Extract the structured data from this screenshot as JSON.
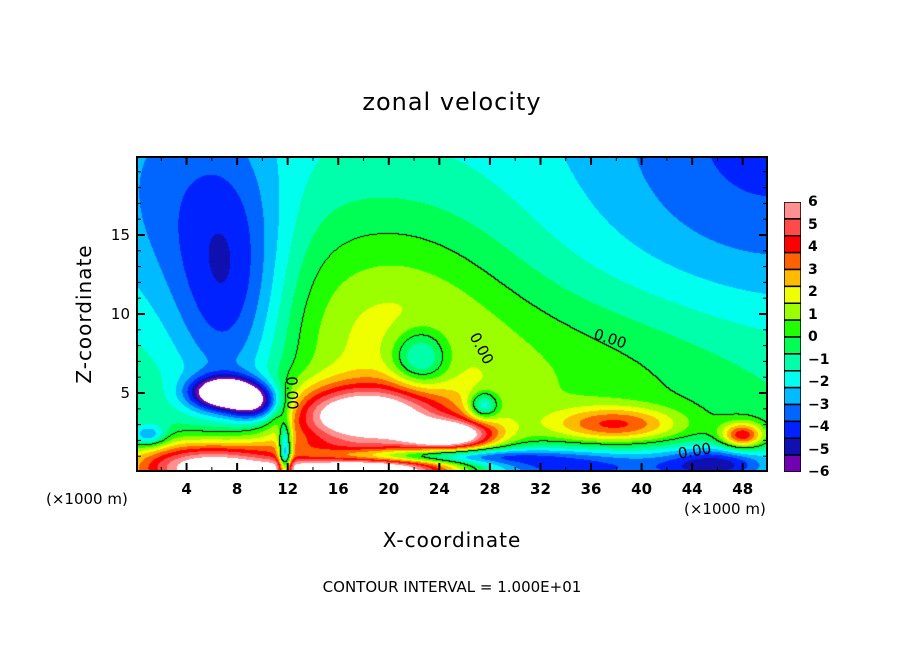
{
  "chart_data": {
    "type": "heatmap",
    "subtype": "filled-contour",
    "title": "zonal velocity",
    "xlabel": "X-coordinate",
    "ylabel": "Z-coordinate",
    "x_unit_label": "(×1000 m)",
    "footer": "CONTOUR INTERVAL = 1.000E+01",
    "xlim": [
      0,
      50
    ],
    "ylim": [
      0,
      20
    ],
    "x_ticks": [
      4,
      8,
      12,
      16,
      20,
      24,
      28,
      32,
      36,
      40,
      44,
      48
    ],
    "x_tick_labels": [
      "4",
      "8",
      "12",
      "16",
      "20",
      "24",
      "28",
      "32",
      "36",
      "40",
      "44",
      "48"
    ],
    "x_minor_step": 2,
    "y_ticks": [
      5,
      10,
      15
    ],
    "y_tick_labels": [
      "5",
      "10",
      "15"
    ],
    "y_minor_step": 1,
    "colorbar": {
      "min": -6,
      "max": 6,
      "levels": [
        -6,
        -5,
        -4,
        -3,
        -2,
        -1,
        0,
        1,
        2,
        3,
        4,
        5,
        6
      ],
      "labels": [
        "6",
        "5",
        "4",
        "3",
        "2",
        "1",
        "0",
        "−1",
        "−2",
        "−3",
        "−4",
        "−5",
        "−6"
      ],
      "colors_top_to_bottom": [
        "#ff9090",
        "#ff4a4a",
        "#ff0000",
        "#ff6000",
        "#ffbb00",
        "#f0ff00",
        "#9cff00",
        "#20ff00",
        "#00ff55",
        "#00ffaa",
        "#00ffee",
        "#00bbff",
        "#0066ff",
        "#0022ff",
        "#1010b0",
        "#7000b0"
      ]
    },
    "contour_labels": [
      {
        "text": "0.00",
        "x": 37.5,
        "z": 8.4,
        "rotation": 18
      },
      {
        "text": "0.00",
        "x": 27.3,
        "z": 7.8,
        "rotation": 62
      },
      {
        "text": "0.00",
        "x": 12.3,
        "z": 5.0,
        "rotation": 88
      },
      {
        "text": "0.00",
        "x": 44.2,
        "z": 1.3,
        "rotation": -10
      }
    ],
    "features": [
      {
        "note": "background",
        "x": 25,
        "z": 10,
        "value": -0.5,
        "sx": 100,
        "sz": 100
      },
      {
        "note": "upper-left negative lobe",
        "x": 7.5,
        "z": 11,
        "value": -3.2,
        "sx": 3.2,
        "sz": 6
      },
      {
        "note": "upper-right negative",
        "x": 50,
        "z": 20,
        "value": -2.2,
        "sx": 10,
        "sz": 8
      },
      {
        "note": "left upper negative",
        "x": 2,
        "z": 17,
        "value": -1.6,
        "sx": 5,
        "sz": 6
      },
      {
        "note": "mid positive",
        "x": 20,
        "z": 10,
        "value": 2.2,
        "sx": 7,
        "sz": 5
      },
      {
        "note": "positive broad",
        "x": 33,
        "z": 6,
        "value": 1.6,
        "sx": 14,
        "sz": 4
      },
      {
        "note": "jet positive",
        "x": 18,
        "z": 3.5,
        "value": 7.5,
        "sx": 4.5,
        "sz": 1.4
      },
      {
        "note": "jet tail",
        "x": 25,
        "z": 2.3,
        "value": 6.5,
        "sx": 2.5,
        "sz": 0.7
      },
      {
        "note": "neg white blob",
        "x": 7,
        "z": 5,
        "value": -7.5,
        "sx": 1.8,
        "sz": 0.7
      },
      {
        "note": "neg blob 2",
        "x": 9.5,
        "z": 4.3,
        "value": -5,
        "sx": 1.5,
        "sz": 0.8
      },
      {
        "note": "neg pocket right",
        "x": 22.5,
        "z": 7.2,
        "value": -3.5,
        "sx": 1.6,
        "sz": 1.3
      },
      {
        "note": "neg pocket 2",
        "x": 27.5,
        "z": 4.2,
        "value": -3.5,
        "sx": 0.8,
        "sz": 0.6
      },
      {
        "note": "surface pos left",
        "x": 6,
        "z": 0.3,
        "value": 8,
        "sx": 4.5,
        "sz": 1.2
      },
      {
        "note": "surface pos mid",
        "x": 19,
        "z": 0.1,
        "value": 9,
        "sx": 5.5,
        "sz": 0.9
      },
      {
        "note": "surface neg band",
        "x": 22,
        "z": 1.0,
        "value": -5,
        "sx": 6,
        "sz": 0.35
      },
      {
        "note": "surface neg right",
        "x": 33,
        "z": 0.3,
        "value": -4.2,
        "sx": 8,
        "sz": 0.9
      },
      {
        "note": "surface neg far right",
        "x": 46,
        "z": 0.5,
        "value": -3.5,
        "sx": 3,
        "sz": 0.8
      },
      {
        "note": "gap at x=12",
        "x": 11.8,
        "z": 1.0,
        "value": -6,
        "sx": 0.35,
        "sz": 1.4
      },
      {
        "note": "red low right",
        "x": 48,
        "z": 2.3,
        "value": 5,
        "sx": 1.2,
        "sz": 0.6
      },
      {
        "note": "red patches",
        "x": 38,
        "z": 3.0,
        "value": 3.8,
        "sx": 3.5,
        "sz": 0.8
      },
      {
        "note": "left low neg",
        "x": 1,
        "z": 2.3,
        "value": -3,
        "sx": 1,
        "sz": 0.5
      }
    ]
  }
}
